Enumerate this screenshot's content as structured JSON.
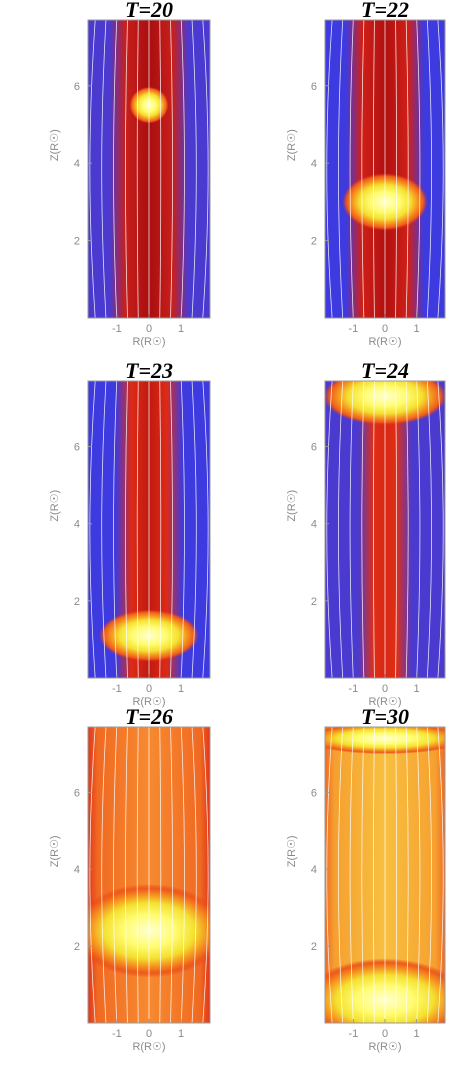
{
  "chart_data": [
    {
      "type": "heatmap",
      "title": "T=20",
      "xlabel": "R(R☉)",
      "ylabel": "Z(R☉)",
      "xlim": [
        -1.9,
        1.9
      ],
      "ylim": [
        0,
        7.7
      ],
      "x_ticks": [
        "-1",
        "0",
        "1"
      ],
      "y_ticks": [
        "2",
        "4",
        "6"
      ],
      "blobs": [
        {
          "x": 0,
          "z": 5.5,
          "half_width": 0.45,
          "half_height": 0.35,
          "level": "peak"
        }
      ],
      "background": "blue-outer / red-core column"
    },
    {
      "type": "heatmap",
      "title": "T=22",
      "xlabel": "R(R☉)",
      "ylabel": "Z(R☉)",
      "xlim": [
        -1.9,
        1.9
      ],
      "ylim": [
        0,
        7.7
      ],
      "x_ticks": [
        "-1",
        "0",
        "1"
      ],
      "y_ticks": [
        "2",
        "4",
        "6"
      ],
      "blobs": [
        {
          "x": 0,
          "z": 3.0,
          "half_width": 1.0,
          "half_height": 0.55,
          "level": "peak"
        }
      ],
      "background": "blue-outer / red-core column"
    },
    {
      "type": "heatmap",
      "title": "T=23",
      "xlabel": "R(R☉)",
      "ylabel": "Z(R☉)",
      "xlim": [
        -1.9,
        1.9
      ],
      "ylim": [
        0,
        7.7
      ],
      "x_ticks": [
        "-1",
        "0",
        "1"
      ],
      "y_ticks": [
        "2",
        "4",
        "6"
      ],
      "blobs": [
        {
          "x": 0,
          "z": 1.1,
          "half_width": 1.15,
          "half_height": 0.5,
          "level": "peak"
        }
      ],
      "background": "blue-outer / red-core column"
    },
    {
      "type": "heatmap",
      "title": "T=24",
      "xlabel": "R(R☉)",
      "ylabel": "Z(R☉)",
      "xlim": [
        -1.9,
        1.9
      ],
      "ylim": [
        0,
        7.7
      ],
      "x_ticks": [
        "-1",
        "0",
        "1"
      ],
      "y_ticks": [
        "2",
        "4",
        "6"
      ],
      "blobs": [
        {
          "x": 0,
          "z": 7.3,
          "half_width": 1.45,
          "half_height": 0.55,
          "level": "peak"
        }
      ],
      "background": "blue-outer / red-core column"
    },
    {
      "type": "heatmap",
      "title": "T=26",
      "xlabel": "R(R☉)",
      "ylabel": "Z(R☉)",
      "xlim": [
        -1.9,
        1.9
      ],
      "ylim": [
        0,
        7.7
      ],
      "x_ticks": [
        "-1",
        "0",
        "1"
      ],
      "y_ticks": [
        "2",
        "4",
        "6"
      ],
      "blobs": [
        {
          "x": 0,
          "z": 2.4,
          "half_width": 1.75,
          "half_height": 0.9,
          "level": "peak"
        }
      ],
      "background": "red-orange everywhere"
    },
    {
      "type": "heatmap",
      "title": "T=30",
      "xlabel": "R(R☉)",
      "ylabel": "Z(R☉)",
      "xlim": [
        -1.9,
        1.9
      ],
      "ylim": [
        0,
        7.7
      ],
      "x_ticks": [
        "-1",
        "0",
        "1"
      ],
      "y_ticks": [
        "2",
        "4",
        "6"
      ],
      "blobs": [
        {
          "x": 0,
          "z": 7.4,
          "half_width": 1.9,
          "half_height": 0.3,
          "level": "peak"
        },
        {
          "x": 0,
          "z": 0.6,
          "half_width": 1.9,
          "half_height": 0.8,
          "level": "peak"
        }
      ],
      "background": "orange-yellow everywhere"
    }
  ]
}
